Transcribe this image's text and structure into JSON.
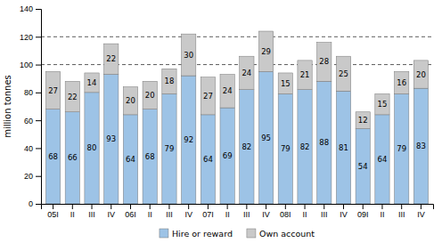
{
  "chart_data": {
    "type": "bar",
    "stacked": true,
    "data_labels": true,
    "legend": "bottom",
    "y_label": "million tonnes",
    "categories": [
      "05I",
      "II",
      "III",
      "IV",
      "06I",
      "II",
      "III",
      "IV",
      "07I",
      "II",
      "III",
      "IV",
      "08I",
      "II",
      "III",
      "IV",
      "09I",
      "II",
      "III",
      "IV"
    ],
    "series": [
      {
        "name": "Hire or reward",
        "color": "#9DC3E6",
        "values": [
          68,
          66,
          80,
          93,
          64,
          68,
          79,
          92,
          64,
          69,
          82,
          95,
          79,
          82,
          88,
          81,
          54,
          64,
          79,
          83
        ]
      },
      {
        "name": "Own account",
        "color": "#C9C9C9",
        "values": [
          27,
          22,
          14,
          22,
          20,
          20,
          18,
          30,
          27,
          24,
          24,
          29,
          15,
          21,
          28,
          25,
          12,
          15,
          16,
          20
        ]
      }
    ],
    "hlines": [
      100,
      120
    ],
    "ylim": [
      0,
      140
    ],
    "yticks": [
      0,
      20,
      40,
      60,
      80,
      100,
      120,
      140
    ]
  }
}
